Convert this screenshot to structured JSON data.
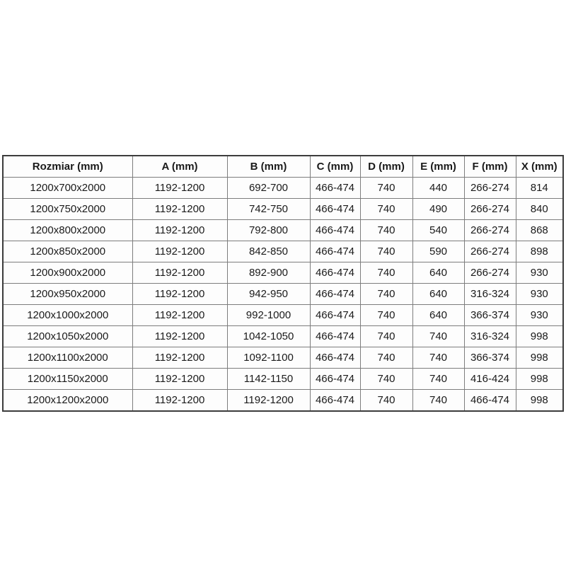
{
  "table": {
    "headers": [
      "Rozmiar (mm)",
      "A (mm)",
      "B (mm)",
      "C (mm)",
      "D (mm)",
      "E (mm)",
      "F (mm)",
      "X (mm)"
    ],
    "rows": [
      [
        "1200x700x2000",
        "1192-1200",
        "692-700",
        "466-474",
        "740",
        "440",
        "266-274",
        "814"
      ],
      [
        "1200x750x2000",
        "1192-1200",
        "742-750",
        "466-474",
        "740",
        "490",
        "266-274",
        "840"
      ],
      [
        "1200x800x2000",
        "1192-1200",
        "792-800",
        "466-474",
        "740",
        "540",
        "266-274",
        "868"
      ],
      [
        "1200x850x2000",
        "1192-1200",
        "842-850",
        "466-474",
        "740",
        "590",
        "266-274",
        "898"
      ],
      [
        "1200x900x2000",
        "1192-1200",
        "892-900",
        "466-474",
        "740",
        "640",
        "266-274",
        "930"
      ],
      [
        "1200x950x2000",
        "1192-1200",
        "942-950",
        "466-474",
        "740",
        "640",
        "316-324",
        "930"
      ],
      [
        "1200x1000x2000",
        "1192-1200",
        "992-1000",
        "466-474",
        "740",
        "640",
        "366-374",
        "930"
      ],
      [
        "1200x1050x2000",
        "1192-1200",
        "1042-1050",
        "466-474",
        "740",
        "740",
        "316-324",
        "998"
      ],
      [
        "1200x1100x2000",
        "1192-1200",
        "1092-1100",
        "466-474",
        "740",
        "740",
        "366-374",
        "998"
      ],
      [
        "1200x1150x2000",
        "1192-1200",
        "1142-1150",
        "466-474",
        "740",
        "740",
        "416-424",
        "998"
      ],
      [
        "1200x1200x2000",
        "1192-1200",
        "1192-1200",
        "466-474",
        "740",
        "740",
        "466-474",
        "998"
      ]
    ],
    "colors": {
      "outer_border": "#3c3c3c",
      "inner_border": "#7d7d7d",
      "text": "#1a1a1a",
      "background": "#ffffff"
    }
  }
}
